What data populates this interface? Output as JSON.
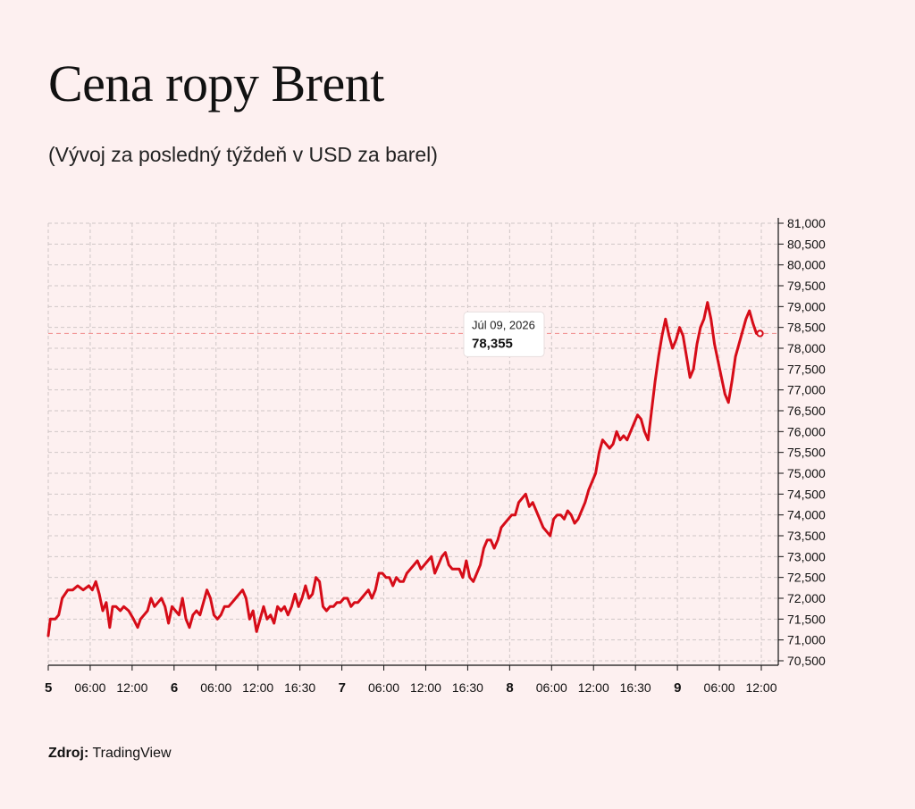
{
  "title": "Cena ropy Brent",
  "subtitle": "(Vývoj za posledný týždeň v USD za barel)",
  "footer": {
    "source_label": "Zdroj:",
    "source_value": "TradingView"
  },
  "tooltip": {
    "date": "Júl 09, 2026",
    "value_label": "78,355",
    "value": 78355
  },
  "colors": {
    "background": "#fdf0f0",
    "line": "#d60c18",
    "grid": "#cfc6c6",
    "ref_line": "#f08a8a"
  },
  "chart_data": {
    "type": "line",
    "title": "Cena ropy Brent",
    "subtitle": "(Vývoj za posledný týždeň v USD za barel)",
    "xlabel": "",
    "ylabel": "",
    "y_axis_position": "right",
    "ylim": [
      70500,
      81000
    ],
    "y_ticks": [
      81000,
      80500,
      80000,
      79500,
      79000,
      78500,
      78000,
      77500,
      77000,
      76500,
      76000,
      75500,
      75000,
      74500,
      74000,
      73500,
      73000,
      72500,
      72000,
      71500,
      71000,
      70500
    ],
    "y_tick_labels": [
      "81,000",
      "80,500",
      "80,000",
      "79,500",
      "79,000",
      "78,500",
      "78,000",
      "77,500",
      "77,000",
      "76,500",
      "76,000",
      "75,500",
      "75,000",
      "74,500",
      "74,000",
      "73,500",
      "73,000",
      "72,500",
      "72,000",
      "71,500",
      "71,000",
      "70,500"
    ],
    "xlim": [
      0,
      102
    ],
    "x_ticks": [
      {
        "x": 0,
        "label": "5",
        "bold": true
      },
      {
        "x": 6,
        "label": "06:00",
        "bold": false
      },
      {
        "x": 12,
        "label": "12:00",
        "bold": false
      },
      {
        "x": 18,
        "label": "6",
        "bold": true
      },
      {
        "x": 24,
        "label": "06:00",
        "bold": false
      },
      {
        "x": 30,
        "label": "12:00",
        "bold": false
      },
      {
        "x": 36,
        "label": "16:30",
        "bold": false
      },
      {
        "x": 42,
        "label": "7",
        "bold": true
      },
      {
        "x": 48,
        "label": "06:00",
        "bold": false
      },
      {
        "x": 54,
        "label": "12:00",
        "bold": false
      },
      {
        "x": 60,
        "label": "16:30",
        "bold": false
      },
      {
        "x": 66,
        "label": "8",
        "bold": true
      },
      {
        "x": 72,
        "label": "06:00",
        "bold": false
      },
      {
        "x": 78,
        "label": "12:00",
        "bold": false
      },
      {
        "x": 84,
        "label": "16:30",
        "bold": false
      },
      {
        "x": 90,
        "label": "9",
        "bold": true
      },
      {
        "x": 96,
        "label": "06:00",
        "bold": false
      },
      {
        "x": 102,
        "label": "12:00",
        "bold": false
      }
    ],
    "grid": true,
    "reference_line": 78355,
    "series": [
      {
        "points": [
          [
            0.0,
            71100
          ],
          [
            0.3,
            71500
          ],
          [
            1.0,
            71500
          ],
          [
            1.5,
            71600
          ],
          [
            2.0,
            72000
          ],
          [
            2.8,
            72200
          ],
          [
            3.5,
            72200
          ],
          [
            4.2,
            72300
          ],
          [
            5.0,
            72200
          ],
          [
            5.8,
            72300
          ],
          [
            6.3,
            72200
          ],
          [
            6.8,
            72400
          ],
          [
            7.3,
            72100
          ],
          [
            7.8,
            71700
          ],
          [
            8.3,
            71900
          ],
          [
            8.8,
            71300
          ],
          [
            9.2,
            71800
          ],
          [
            9.7,
            71800
          ],
          [
            10.3,
            71700
          ],
          [
            10.8,
            71800
          ],
          [
            11.5,
            71700
          ],
          [
            12.2,
            71500
          ],
          [
            12.8,
            71300
          ],
          [
            13.2,
            71500
          ],
          [
            13.7,
            71600
          ],
          [
            14.2,
            71700
          ],
          [
            14.7,
            72000
          ],
          [
            15.2,
            71800
          ],
          [
            15.7,
            71900
          ],
          [
            16.2,
            72000
          ],
          [
            16.7,
            71800
          ],
          [
            17.2,
            71400
          ],
          [
            17.7,
            71800
          ],
          [
            18.2,
            71700
          ],
          [
            18.7,
            71600
          ],
          [
            19.2,
            72000
          ],
          [
            19.7,
            71500
          ],
          [
            20.2,
            71300
          ],
          [
            20.7,
            71600
          ],
          [
            21.2,
            71700
          ],
          [
            21.7,
            71600
          ],
          [
            22.2,
            71900
          ],
          [
            22.7,
            72200
          ],
          [
            23.2,
            72000
          ],
          [
            23.7,
            71600
          ],
          [
            24.2,
            71500
          ],
          [
            24.7,
            71600
          ],
          [
            25.2,
            71800
          ],
          [
            25.8,
            71800
          ],
          [
            26.3,
            71900
          ],
          [
            26.8,
            72000
          ],
          [
            27.3,
            72100
          ],
          [
            27.8,
            72200
          ],
          [
            28.3,
            72000
          ],
          [
            28.8,
            71500
          ],
          [
            29.3,
            71700
          ],
          [
            29.8,
            71200
          ],
          [
            30.3,
            71500
          ],
          [
            30.8,
            71800
          ],
          [
            31.3,
            71500
          ],
          [
            31.8,
            71600
          ],
          [
            32.3,
            71400
          ],
          [
            32.8,
            71800
          ],
          [
            33.3,
            71700
          ],
          [
            33.8,
            71800
          ],
          [
            34.3,
            71600
          ],
          [
            34.8,
            71800
          ],
          [
            35.3,
            72100
          ],
          [
            35.8,
            71800
          ],
          [
            36.3,
            72000
          ],
          [
            36.8,
            72300
          ],
          [
            37.3,
            72000
          ],
          [
            37.8,
            72100
          ],
          [
            38.3,
            72500
          ],
          [
            38.8,
            72400
          ],
          [
            39.3,
            71800
          ],
          [
            39.8,
            71700
          ],
          [
            40.3,
            71800
          ],
          [
            40.8,
            71800
          ],
          [
            41.3,
            71900
          ],
          [
            41.8,
            71900
          ],
          [
            42.3,
            72000
          ],
          [
            42.8,
            72000
          ],
          [
            43.3,
            71800
          ],
          [
            43.8,
            71900
          ],
          [
            44.3,
            71900
          ],
          [
            44.8,
            72000
          ],
          [
            45.3,
            72100
          ],
          [
            45.8,
            72200
          ],
          [
            46.3,
            72000
          ],
          [
            46.8,
            72200
          ],
          [
            47.3,
            72600
          ],
          [
            47.8,
            72600
          ],
          [
            48.3,
            72500
          ],
          [
            48.8,
            72500
          ],
          [
            49.3,
            72300
          ],
          [
            49.8,
            72500
          ],
          [
            50.3,
            72400
          ],
          [
            50.8,
            72400
          ],
          [
            51.3,
            72600
          ],
          [
            51.8,
            72700
          ],
          [
            52.3,
            72800
          ],
          [
            52.8,
            72900
          ],
          [
            53.3,
            72700
          ],
          [
            53.8,
            72800
          ],
          [
            54.3,
            72900
          ],
          [
            54.8,
            73000
          ],
          [
            55.3,
            72600
          ],
          [
            55.8,
            72800
          ],
          [
            56.3,
            73000
          ],
          [
            56.8,
            73100
          ],
          [
            57.3,
            72800
          ],
          [
            57.8,
            72700
          ],
          [
            58.3,
            72700
          ],
          [
            58.8,
            72700
          ],
          [
            59.3,
            72500
          ],
          [
            59.8,
            72900
          ],
          [
            60.3,
            72500
          ],
          [
            60.8,
            72400
          ],
          [
            61.3,
            72600
          ],
          [
            61.8,
            72800
          ],
          [
            62.3,
            73200
          ],
          [
            62.8,
            73400
          ],
          [
            63.3,
            73400
          ],
          [
            63.8,
            73200
          ],
          [
            64.3,
            73400
          ],
          [
            64.8,
            73700
          ],
          [
            65.3,
            73800
          ],
          [
            65.8,
            73900
          ],
          [
            66.3,
            74000
          ],
          [
            66.8,
            74000
          ],
          [
            67.3,
            74300
          ],
          [
            67.8,
            74400
          ],
          [
            68.3,
            74500
          ],
          [
            68.8,
            74200
          ],
          [
            69.3,
            74300
          ],
          [
            69.8,
            74100
          ],
          [
            70.3,
            73900
          ],
          [
            70.8,
            73700
          ],
          [
            71.3,
            73600
          ],
          [
            71.8,
            73500
          ],
          [
            72.3,
            73900
          ],
          [
            72.8,
            74000
          ],
          [
            73.3,
            74000
          ],
          [
            73.8,
            73900
          ],
          [
            74.3,
            74100
          ],
          [
            74.8,
            74000
          ],
          [
            75.3,
            73800
          ],
          [
            75.8,
            73900
          ],
          [
            76.3,
            74100
          ],
          [
            76.8,
            74300
          ],
          [
            77.3,
            74600
          ],
          [
            77.8,
            74800
          ],
          [
            78.3,
            75000
          ],
          [
            78.8,
            75500
          ],
          [
            79.3,
            75800
          ],
          [
            79.8,
            75700
          ],
          [
            80.3,
            75600
          ],
          [
            80.8,
            75700
          ],
          [
            81.3,
            76000
          ],
          [
            81.8,
            75800
          ],
          [
            82.3,
            75900
          ],
          [
            82.8,
            75800
          ],
          [
            83.3,
            76000
          ],
          [
            83.8,
            76200
          ],
          [
            84.3,
            76400
          ],
          [
            84.8,
            76300
          ],
          [
            85.3,
            76000
          ],
          [
            85.8,
            75800
          ],
          [
            86.3,
            76500
          ],
          [
            86.8,
            77200
          ],
          [
            87.3,
            77800
          ],
          [
            87.8,
            78300
          ],
          [
            88.3,
            78700
          ],
          [
            88.8,
            78300
          ],
          [
            89.3,
            78000
          ],
          [
            89.8,
            78200
          ],
          [
            90.3,
            78500
          ],
          [
            90.8,
            78300
          ],
          [
            91.3,
            77800
          ],
          [
            91.8,
            77300
          ],
          [
            92.3,
            77500
          ],
          [
            92.8,
            78100
          ],
          [
            93.3,
            78500
          ],
          [
            93.8,
            78700
          ],
          [
            94.3,
            79100
          ],
          [
            94.8,
            78700
          ],
          [
            95.3,
            78100
          ],
          [
            95.8,
            77700
          ],
          [
            96.3,
            77300
          ],
          [
            96.8,
            76900
          ],
          [
            97.3,
            76700
          ],
          [
            97.8,
            77200
          ],
          [
            98.3,
            77800
          ],
          [
            98.8,
            78100
          ],
          [
            99.3,
            78400
          ],
          [
            99.8,
            78700
          ],
          [
            100.3,
            78900
          ],
          [
            100.8,
            78600
          ],
          [
            101.3,
            78355
          ]
        ]
      }
    ]
  }
}
